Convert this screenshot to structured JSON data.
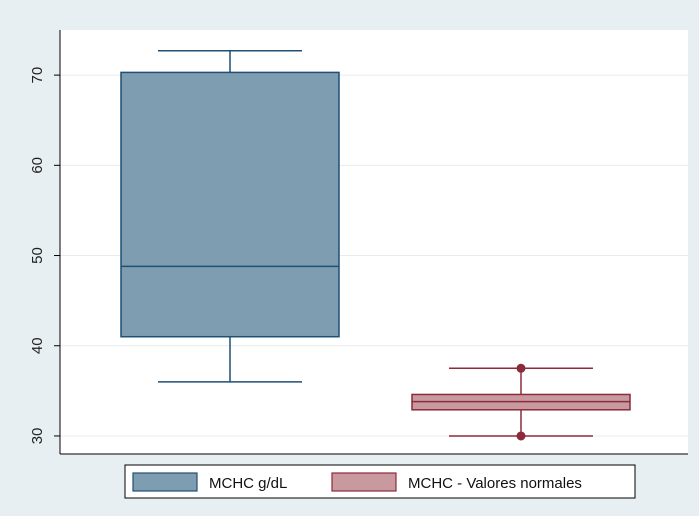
{
  "chart_data": {
    "type": "box",
    "ylim": [
      28,
      75
    ],
    "yticks": [
      30,
      40,
      50,
      60,
      70
    ],
    "grid": true,
    "legend_position": "bottom",
    "series": [
      {
        "name": "MCHC g/dL",
        "whisker_low": 36,
        "q1": 41,
        "median": 48.8,
        "q3": 70.3,
        "whisker_high": 72.7,
        "outliers": [],
        "fill": "#7f9db0",
        "stroke": "#1f4f73"
      },
      {
        "name": "MCHC - Valores normales",
        "whisker_low": 30,
        "q1": 32.9,
        "median": 33.8,
        "q3": 34.6,
        "whisker_high": 37.5,
        "outliers": [
          30,
          37.5
        ],
        "fill": "#c89aa0",
        "stroke": "#8b2b3b"
      }
    ]
  }
}
